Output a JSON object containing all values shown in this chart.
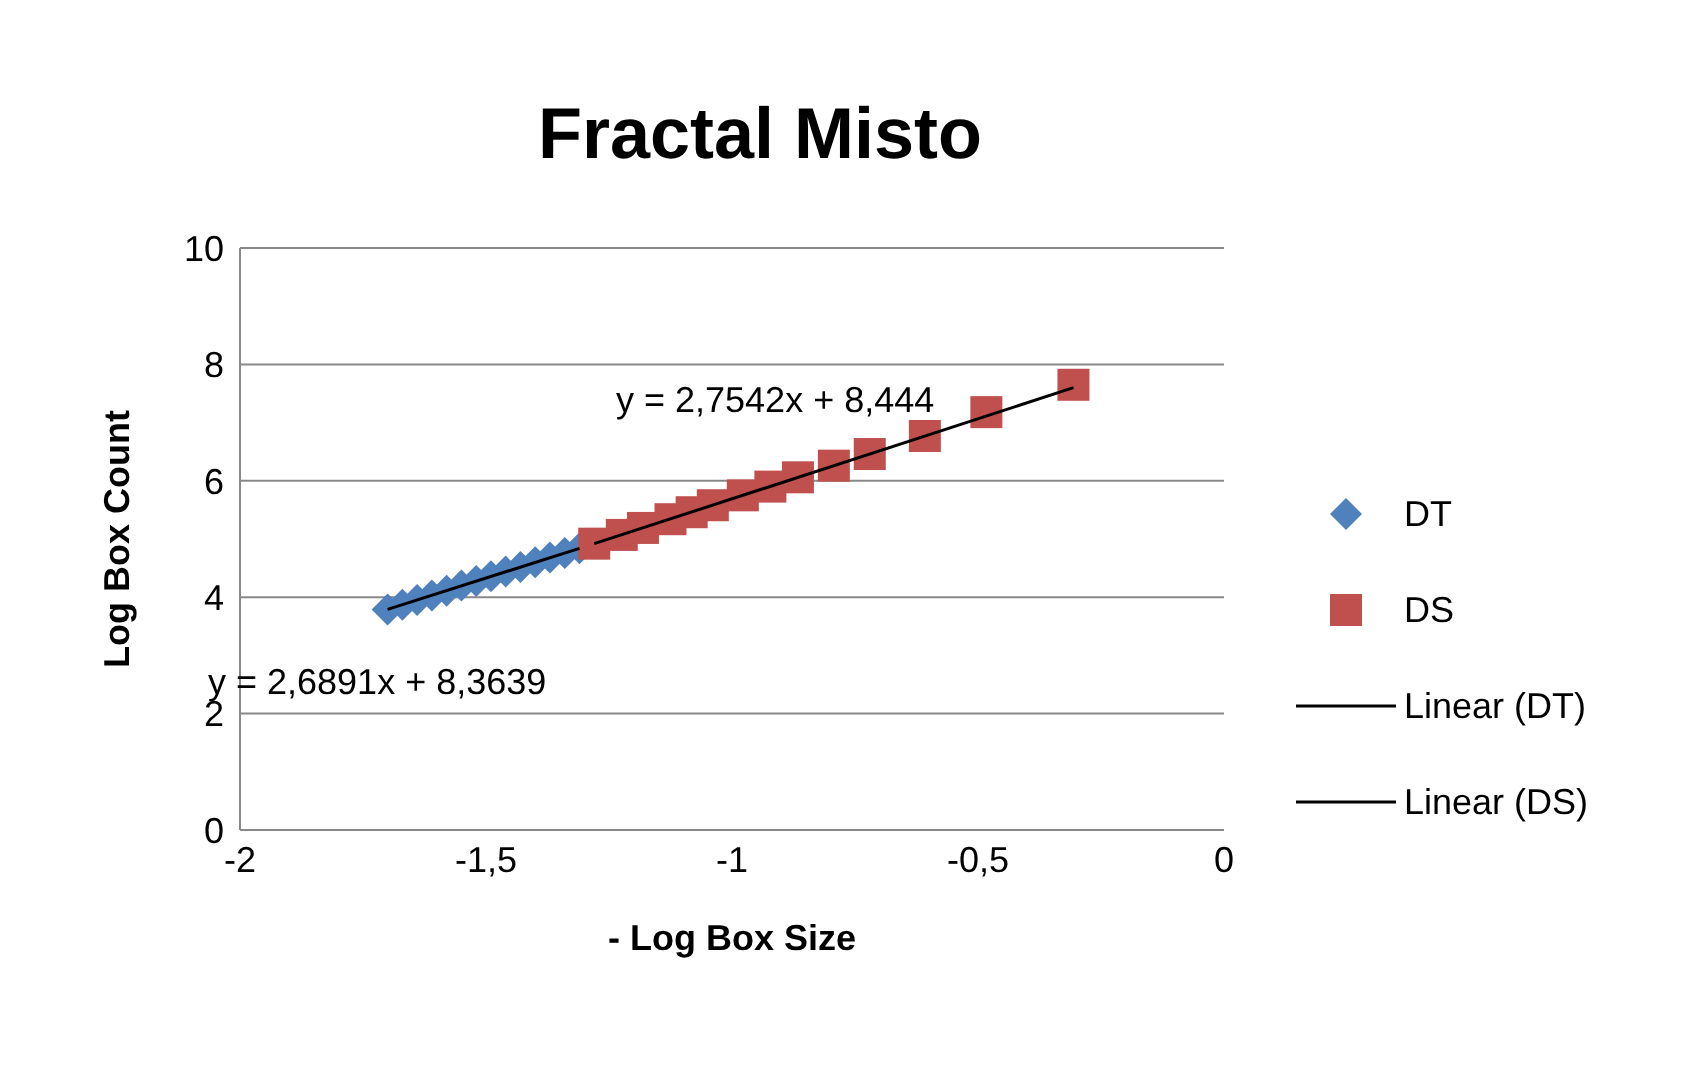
{
  "chart_data": {
    "type": "scatter",
    "title": "Fractal Misto",
    "xlabel": "- Log Box Size",
    "ylabel": "Log Box Count",
    "xlim": [
      -2,
      0
    ],
    "xticks": [
      -2,
      {
        "value": -1.5,
        "label": "-1,5"
      },
      -1,
      {
        "value": -0.5,
        "label": "-0,5"
      },
      0
    ],
    "ylim": [
      0,
      10
    ],
    "yticks": [
      0,
      2,
      4,
      6,
      8,
      10
    ],
    "grid": "y",
    "legend": "right",
    "series": [
      {
        "name": "DT",
        "marker": "diamond",
        "color": "#4f81bd",
        "x": [
          -1.7,
          -1.67,
          -1.64,
          -1.61,
          -1.58,
          -1.55,
          -1.52,
          -1.49,
          -1.46,
          -1.43,
          -1.4,
          -1.37,
          -1.34,
          -1.31
        ],
        "values": [
          3.79,
          3.87,
          3.95,
          4.03,
          4.11,
          4.2,
          4.28,
          4.36,
          4.44,
          4.52,
          4.6,
          4.68,
          4.76,
          4.84
        ]
      },
      {
        "name": "DS",
        "marker": "square",
        "color": "#c0504d",
        "x": [
          -1.28,
          -1.224,
          -1.181,
          -1.125,
          -1.082,
          -1.039,
          -0.978,
          -0.922,
          -0.866,
          -0.793,
          -0.72,
          -0.608,
          -0.483,
          -0.306
        ],
        "values": [
          4.92,
          5.07,
          5.19,
          5.34,
          5.46,
          5.58,
          5.75,
          5.9,
          6.06,
          6.26,
          6.46,
          6.77,
          7.18,
          7.65
        ]
      },
      {
        "name": "Linear (DT)",
        "type": "line",
        "marker": "none",
        "color": "#000000",
        "x": [
          -1.7,
          -1.31
        ],
        "values": [
          3.79,
          4.84
        ]
      },
      {
        "name": "Linear (DS)",
        "type": "line",
        "marker": "none",
        "color": "#000000",
        "x": [
          -1.28,
          -0.306
        ],
        "values": [
          4.92,
          7.6
        ]
      }
    ],
    "annotations": [
      "y = 2,7542x + 8,444",
      "y = 2,6891x + 8,3639"
    ]
  }
}
